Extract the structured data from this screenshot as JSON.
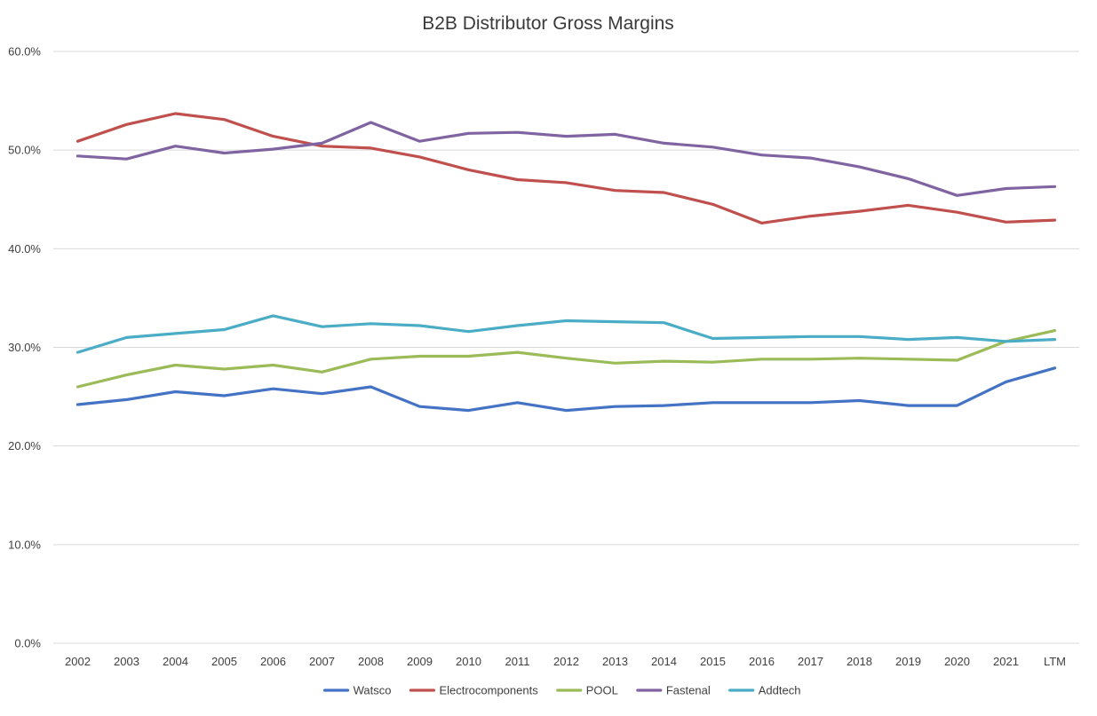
{
  "chart_data": {
    "type": "line",
    "title": "B2B Distributor Gross Margins",
    "xlabel": "",
    "ylabel": "",
    "ylim": [
      0,
      60
    ],
    "y_ticks": [
      "0.0%",
      "10.0%",
      "20.0%",
      "30.0%",
      "40.0%",
      "50.0%",
      "60.0%"
    ],
    "y_tick_values": [
      0,
      10,
      20,
      30,
      40,
      50,
      60
    ],
    "grid": "horizontal",
    "legend_position": "bottom",
    "categories": [
      "2002",
      "2003",
      "2004",
      "2005",
      "2006",
      "2007",
      "2008",
      "2009",
      "2010",
      "2011",
      "2012",
      "2013",
      "2014",
      "2015",
      "2016",
      "2017",
      "2018",
      "2019",
      "2020",
      "2021",
      "LTM"
    ],
    "series": [
      {
        "name": "Watsco",
        "color": "#4472C4",
        "values": [
          24.2,
          24.7,
          25.5,
          25.1,
          25.8,
          25.3,
          26.0,
          24.0,
          23.6,
          24.4,
          23.6,
          24.0,
          24.1,
          24.4,
          24.4,
          24.4,
          24.6,
          24.1,
          24.1,
          26.5,
          27.9
        ]
      },
      {
        "name": "Electrocomponents",
        "color": "#C0504D",
        "values": [
          50.9,
          52.6,
          53.7,
          53.1,
          51.4,
          50.4,
          50.2,
          49.3,
          48.0,
          47.0,
          46.7,
          45.9,
          45.7,
          44.5,
          42.6,
          43.3,
          43.8,
          44.4,
          43.7,
          42.7,
          42.9
        ]
      },
      {
        "name": "POOL",
        "color": "#9BBB59",
        "values": [
          26.0,
          27.2,
          28.2,
          27.8,
          28.2,
          27.5,
          28.8,
          29.1,
          29.1,
          29.5,
          28.9,
          28.4,
          28.6,
          28.5,
          28.8,
          28.8,
          28.9,
          28.8,
          28.7,
          30.6,
          31.7
        ]
      },
      {
        "name": "Fastenal",
        "color": "#8064A2",
        "values": [
          49.4,
          49.1,
          50.4,
          49.7,
          50.1,
          50.7,
          52.8,
          50.9,
          51.7,
          51.8,
          51.4,
          51.6,
          50.7,
          50.3,
          49.5,
          49.2,
          48.3,
          47.1,
          45.4,
          46.1,
          46.3
        ]
      },
      {
        "name": "Addtech",
        "color": "#4BACC6",
        "values": [
          29.5,
          31.0,
          31.4,
          31.8,
          33.2,
          32.1,
          32.4,
          32.2,
          31.6,
          32.2,
          32.7,
          32.6,
          32.5,
          30.9,
          31.0,
          31.1,
          31.1,
          30.8,
          31.0,
          30.6,
          30.8
        ]
      }
    ]
  }
}
